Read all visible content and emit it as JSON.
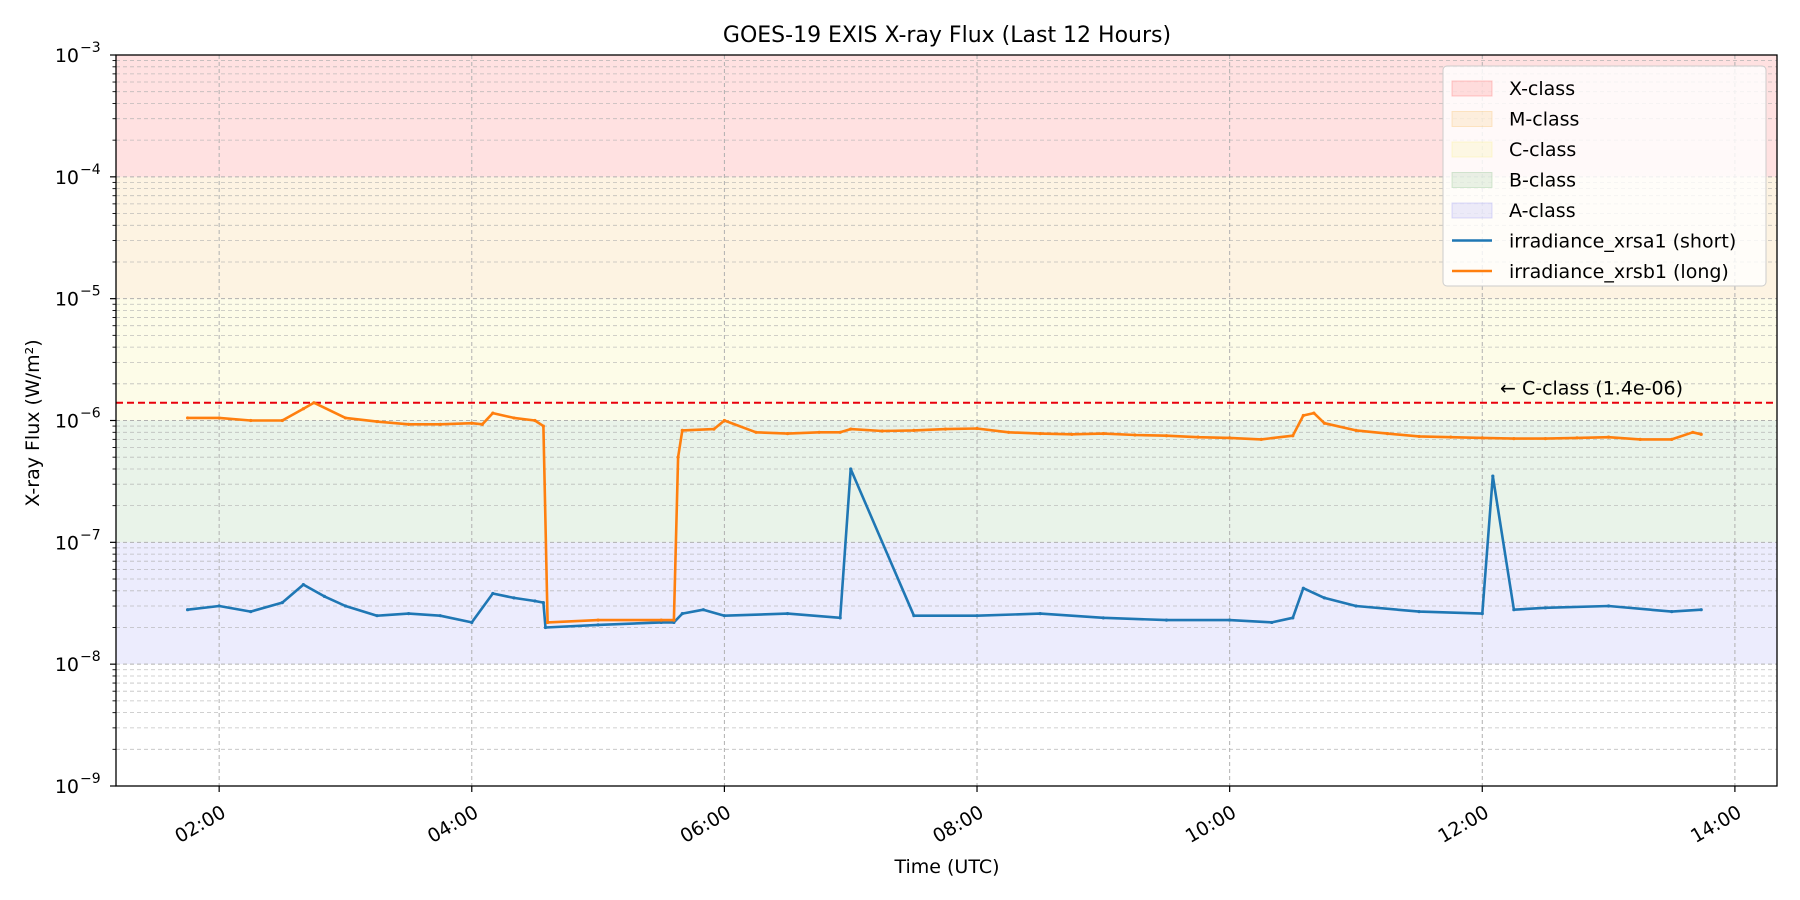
{
  "chart_data": {
    "type": "line",
    "title": "GOES-19 EXIS X-ray Flux (Last 12 Hours)",
    "xlabel": "Time (UTC)",
    "ylabel": "X-ray Flux (W/m²)",
    "y_scale": "log",
    "ylim": [
      1e-09,
      0.001
    ],
    "xlim": [
      "01:11",
      "14:20"
    ],
    "x_ticks": [
      "02:00",
      "04:00",
      "06:00",
      "08:00",
      "10:00",
      "12:00",
      "14:00"
    ],
    "y_ticks": [
      {
        "base": "10",
        "exp": "−9",
        "value": 1e-09
      },
      {
        "base": "10",
        "exp": "−8",
        "value": 1e-08
      },
      {
        "base": "10",
        "exp": "−7",
        "value": 1e-07
      },
      {
        "base": "10",
        "exp": "−6",
        "value": 1e-06
      },
      {
        "base": "10",
        "exp": "−5",
        "value": 1e-05
      },
      {
        "base": "10",
        "exp": "−4",
        "value": 0.0001
      },
      {
        "base": "10",
        "exp": "−3",
        "value": 0.001
      }
    ],
    "grid": true,
    "legend_position": "top-right",
    "bands": [
      {
        "label": "X-class",
        "from": 0.0001,
        "to": 0.001,
        "color": "#ff6b6b"
      },
      {
        "label": "M-class",
        "from": 1e-05,
        "to": 0.0001,
        "color": "#f5c16c"
      },
      {
        "label": "C-class",
        "from": 1e-06,
        "to": 1e-05,
        "color": "#f5ee8a"
      },
      {
        "label": "B-class",
        "from": 1e-07,
        "to": 1e-06,
        "color": "#8fc48f"
      },
      {
        "label": "A-class",
        "from": 1e-08,
        "to": 1e-07,
        "color": "#9f9ff5"
      }
    ],
    "threshold": {
      "value": 1.4e-06,
      "label": "← C-class (1.4e-06)",
      "color": "#e8000b"
    },
    "series": [
      {
        "name": "irradiance_xrsa1 (short)",
        "color": "#1f77b4",
        "x": [
          "01:45",
          "02:00",
          "02:15",
          "02:30",
          "02:40",
          "02:50",
          "03:00",
          "03:15",
          "03:30",
          "03:45",
          "04:00",
          "04:10",
          "04:20",
          "04:30",
          "04:34",
          "04:35",
          "05:00",
          "05:30",
          "05:36",
          "05:40",
          "05:50",
          "06:00",
          "06:30",
          "06:55",
          "07:00",
          "07:30",
          "08:00",
          "08:30",
          "09:00",
          "09:30",
          "10:00",
          "10:20",
          "10:30",
          "10:35",
          "10:45",
          "11:00",
          "11:30",
          "12:00",
          "12:05",
          "12:15",
          "12:30",
          "13:00",
          "13:30",
          "13:44"
        ],
        "values": [
          2.8e-08,
          3e-08,
          2.7e-08,
          3.2e-08,
          4.5e-08,
          3.6e-08,
          3e-08,
          2.5e-08,
          2.6e-08,
          2.5e-08,
          2.2e-08,
          3.8e-08,
          3.5e-08,
          3.3e-08,
          3.2e-08,
          2e-08,
          2.1e-08,
          2.2e-08,
          2.2e-08,
          2.6e-08,
          2.8e-08,
          2.5e-08,
          2.6e-08,
          2.4e-08,
          4e-07,
          2.5e-08,
          2.5e-08,
          2.6e-08,
          2.4e-08,
          2.3e-08,
          2.3e-08,
          2.2e-08,
          2.4e-08,
          4.2e-08,
          3.5e-08,
          3e-08,
          2.7e-08,
          2.6e-08,
          3.5e-07,
          2.8e-08,
          2.9e-08,
          3e-08,
          2.7e-08,
          2.8e-08
        ]
      },
      {
        "name": "irradiance_xrsb1 (long)",
        "color": "#ff7f0e",
        "x": [
          "01:45",
          "02:00",
          "02:15",
          "02:30",
          "02:40",
          "02:45",
          "03:00",
          "03:15",
          "03:30",
          "03:45",
          "04:00",
          "04:05",
          "04:10",
          "04:20",
          "04:30",
          "04:34",
          "04:36",
          "05:00",
          "05:30",
          "05:36",
          "05:38",
          "05:40",
          "05:55",
          "06:00",
          "06:15",
          "06:30",
          "06:45",
          "06:55",
          "07:00",
          "07:15",
          "07:30",
          "07:45",
          "08:00",
          "08:15",
          "08:30",
          "08:45",
          "09:00",
          "09:15",
          "09:30",
          "09:45",
          "10:00",
          "10:15",
          "10:30",
          "10:35",
          "10:40",
          "10:45",
          "11:00",
          "11:15",
          "11:30",
          "11:45",
          "12:00",
          "12:15",
          "12:30",
          "12:45",
          "13:00",
          "13:15",
          "13:30",
          "13:40",
          "13:44"
        ],
        "values": [
          1.05e-06,
          1.05e-06,
          1e-06,
          1e-06,
          1.25e-06,
          1.4e-06,
          1.05e-06,
          9.8e-07,
          9.3e-07,
          9.3e-07,
          9.5e-07,
          9.3e-07,
          1.15e-06,
          1.05e-06,
          1e-06,
          9e-07,
          2.2e-08,
          2.3e-08,
          2.3e-08,
          2.3e-08,
          5e-07,
          8.3e-07,
          8.5e-07,
          1e-06,
          8e-07,
          7.8e-07,
          8e-07,
          8e-07,
          8.5e-07,
          8.2e-07,
          8.3e-07,
          8.5e-07,
          8.6e-07,
          8e-07,
          7.8e-07,
          7.7e-07,
          7.8e-07,
          7.6e-07,
          7.5e-07,
          7.3e-07,
          7.2e-07,
          7e-07,
          7.5e-07,
          1.1e-06,
          1.15e-06,
          9.5e-07,
          8.3e-07,
          7.8e-07,
          7.4e-07,
          7.3e-07,
          7.2e-07,
          7.1e-07,
          7.1e-07,
          7.2e-07,
          7.3e-07,
          7e-07,
          7e-07,
          8e-07,
          7.7e-07
        ]
      }
    ]
  }
}
